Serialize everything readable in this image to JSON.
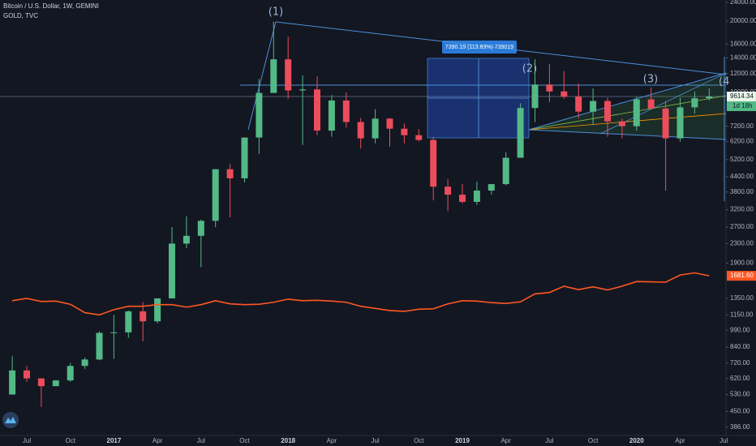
{
  "chart_data": {
    "type": "candlestick",
    "log_scale": true,
    "grid": false,
    "categories": [
      null,
      "Jul",
      null,
      null,
      "Oct",
      null,
      null,
      "2017",
      null,
      null,
      "Apr",
      null,
      null,
      "Jul",
      null,
      null,
      "Oct",
      null,
      null,
      "2018",
      null,
      null,
      "Apr",
      null,
      null,
      "Jul",
      null,
      null,
      "Oct",
      null,
      null,
      "2019",
      null,
      null,
      "Apr",
      null,
      null,
      "Jul",
      null,
      null,
      "Oct",
      null,
      null,
      "2020",
      null,
      null,
      "Apr",
      null,
      null,
      "Jul"
    ],
    "ylim": [
      356,
      24570
    ],
    "yticks": [
      {
        "value": 24000,
        "label": "24000.00"
      },
      {
        "value": 20000,
        "label": "20000.00"
      },
      {
        "value": 16000,
        "label": "16000.00"
      },
      {
        "value": 14000,
        "label": "14000.00"
      },
      {
        "value": 12000,
        "label": "12000.00"
      },
      {
        "value": 10000,
        "label": "10000.00"
      },
      {
        "value": 7200,
        "label": "7200.00"
      },
      {
        "value": 6200,
        "label": "6200.00"
      },
      {
        "value": 5200,
        "label": "5200.00"
      },
      {
        "value": 4400,
        "label": "4400.00"
      },
      {
        "value": 3800,
        "label": "3800.00"
      },
      {
        "value": 3200,
        "label": "3200.00"
      },
      {
        "value": 2700,
        "label": "2700.00"
      },
      {
        "value": 2300,
        "label": "2300.00"
      },
      {
        "value": 1900,
        "label": "1900.00"
      },
      {
        "value": 1350,
        "label": "1350.00"
      },
      {
        "value": 1150,
        "label": "1150.00"
      },
      {
        "value": 990,
        "label": "990.00"
      },
      {
        "value": 840,
        "label": "840.00"
      },
      {
        "value": 720,
        "label": "720.00"
      },
      {
        "value": 620,
        "label": "620.00"
      },
      {
        "value": 530,
        "label": "530.00"
      },
      {
        "value": 450,
        "label": "450.00"
      },
      {
        "value": 386,
        "label": "386.00"
      }
    ],
    "series": [
      {
        "name": "Bitcoin / U.S. Dollar, 1W, GEMINI",
        "up_color": "#53b987",
        "down_color": "#eb4d5c",
        "open": [
          530,
          670,
          620,
          575,
          608,
          700,
          745,
          965,
          970,
          1190,
          1080,
          1350,
          2300,
          2480,
          2870,
          4740,
          4340,
          6450,
          9950,
          13800,
          10200,
          10300,
          6900,
          9250,
          7500,
          6400,
          7750,
          7030,
          6600,
          6300,
          4000,
          3700,
          3450,
          3850,
          4100,
          5300,
          8600,
          10800,
          10100,
          9600,
          8300,
          9200,
          7550,
          7200,
          9350,
          8550,
          6400,
          8650,
          9450,
          null
        ],
        "high": [
          770,
          700,
          620,
          610,
          720,
          760,
          980,
          1150,
          1200,
          1300,
          1350,
          2700,
          3000,
          2900,
          4750,
          5000,
          6450,
          11400,
          19900,
          17200,
          11800,
          11700,
          9750,
          10000,
          7800,
          8500,
          7800,
          7400,
          7000,
          6500,
          4300,
          4100,
          4200,
          4100,
          5600,
          9000,
          13800,
          13200,
          12300,
          10900,
          10400,
          9500,
          7750,
          9600,
          10500,
          9200,
          9500,
          10100,
          10400,
          null
        ],
        "low": [
          530,
          600,
          470,
          575,
          600,
          680,
          740,
          750,
          920,
          890,
          1060,
          1350,
          2200,
          1830,
          2700,
          2970,
          4170,
          5500,
          9950,
          9400,
          6000,
          6600,
          6500,
          7100,
          5800,
          6100,
          5900,
          6100,
          6200,
          3500,
          3150,
          3400,
          3350,
          3700,
          4050,
          5300,
          7500,
          9100,
          9400,
          7800,
          7300,
          6500,
          6400,
          6900,
          8500,
          3850,
          6200,
          8150,
          9250,
          null
        ],
        "close": [
          670,
          620,
          575,
          608,
          700,
          745,
          965,
          970,
          1190,
          1080,
          1350,
          2300,
          2480,
          2870,
          4740,
          4340,
          6450,
          9950,
          13800,
          10200,
          10300,
          6900,
          9250,
          7500,
          6400,
          7750,
          7030,
          6600,
          6300,
          4000,
          3700,
          3450,
          3850,
          4100,
          5300,
          8600,
          10800,
          10100,
          9600,
          8300,
          9200,
          7550,
          7200,
          9350,
          8550,
          6400,
          8650,
          9450,
          9614.34,
          null
        ],
        "countdown": "1d 18h"
      },
      {
        "name": "GOLD, TVC",
        "type": "line",
        "color": "#ff5722",
        "values": [
          1320,
          1350,
          1310,
          1315,
          1275,
          1175,
          1150,
          1210,
          1250,
          1250,
          1270,
          1270,
          1240,
          1270,
          1320,
          1280,
          1270,
          1275,
          1300,
          1340,
          1320,
          1325,
          1315,
          1300,
          1250,
          1225,
          1200,
          1190,
          1215,
          1220,
          1280,
          1320,
          1315,
          1295,
          1285,
          1305,
          1410,
          1430,
          1520,
          1470,
          1510,
          1465,
          1520,
          1590,
          1585,
          1580,
          1695,
          1730,
          1681.6,
          null
        ],
        "last_label": "1681.60"
      }
    ],
    "annotations": [
      "(1)",
      "(2)",
      "(3)",
      "(4",
      "7390.19 (113.83%) 739019"
    ]
  }
}
